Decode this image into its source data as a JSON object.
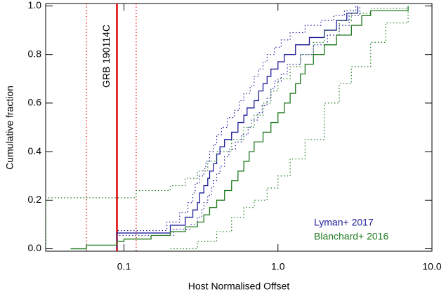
{
  "chart_data": {
    "type": "step",
    "x_label": "Host Normalised Offset",
    "y_label": "Cumulative fraction",
    "xscale": "log",
    "xlim": [
      0.031,
      10
    ],
    "ylim": [
      -0.01,
      1.01
    ],
    "xticks": [
      0.1,
      {
        "value": 1,
        "label": "1.0"
      },
      {
        "value": 10,
        "label": "10.0"
      }
    ],
    "yticks": [
      {
        "value": 0,
        "label": "0.0"
      },
      0.2,
      0.4,
      0.6,
      0.8,
      {
        "value": 1,
        "label": "1.0"
      }
    ],
    "vline": {
      "label": "GRB 190114C",
      "x": 0.09,
      "bounds": [
        0.057,
        0.12
      ],
      "color": "#e00000"
    },
    "series": [
      {
        "name": "Lyman+ 2017",
        "color": "#1c1c9a",
        "x": [
          0.09,
          0.2,
          0.25,
          0.28,
          0.3,
          0.31,
          0.33,
          0.35,
          0.36,
          0.38,
          0.4,
          0.42,
          0.45,
          0.5,
          0.55,
          0.6,
          0.63,
          0.7,
          0.75,
          0.8,
          0.85,
          0.9,
          1.0,
          1.1,
          1.3,
          1.6,
          2.0,
          2.4,
          2.8,
          3.3
        ],
        "values": [
          0.065,
          0.097,
          0.13,
          0.16,
          0.19,
          0.23,
          0.26,
          0.29,
          0.32,
          0.35,
          0.39,
          0.42,
          0.45,
          0.48,
          0.52,
          0.55,
          0.58,
          0.61,
          0.65,
          0.68,
          0.71,
          0.74,
          0.77,
          0.8,
          0.84,
          0.87,
          0.9,
          0.94,
          0.97,
          1.0
        ],
        "upper": {
          "x": [
            0.09,
            0.19,
            0.23,
            0.26,
            0.28,
            0.29,
            0.31,
            0.33,
            0.34,
            0.36,
            0.38,
            0.4,
            0.43,
            0.47,
            0.52,
            0.56,
            0.6,
            0.66,
            0.7,
            0.75,
            0.8,
            0.85,
            0.95,
            1.05,
            1.2,
            1.5,
            1.9,
            2.3,
            2.7,
            3.2
          ],
          "values": [
            0.075,
            0.11,
            0.15,
            0.19,
            0.23,
            0.27,
            0.3,
            0.33,
            0.36,
            0.4,
            0.43,
            0.47,
            0.5,
            0.54,
            0.57,
            0.61,
            0.64,
            0.67,
            0.71,
            0.74,
            0.77,
            0.8,
            0.83,
            0.86,
            0.89,
            0.92,
            0.94,
            0.96,
            0.98,
            1.0
          ]
        },
        "lower": {
          "x": [
            0.09,
            0.21,
            0.27,
            0.3,
            0.32,
            0.33,
            0.35,
            0.37,
            0.38,
            0.4,
            0.42,
            0.45,
            0.48,
            0.53,
            0.58,
            0.64,
            0.67,
            0.74,
            0.79,
            0.85,
            0.9,
            0.95,
            1.05,
            1.15,
            1.4,
            1.7,
            2.1,
            2.5,
            2.9,
            3.4
          ],
          "values": [
            0.055,
            0.08,
            0.1,
            0.13,
            0.16,
            0.19,
            0.22,
            0.25,
            0.28,
            0.31,
            0.34,
            0.38,
            0.41,
            0.44,
            0.47,
            0.5,
            0.53,
            0.56,
            0.59,
            0.62,
            0.66,
            0.69,
            0.72,
            0.76,
            0.8,
            0.84,
            0.88,
            0.92,
            0.96,
            1.0
          ]
        }
      },
      {
        "name": "Blanchard+ 2016",
        "color": "#1f7a1f",
        "x": [
          0.045,
          0.057,
          0.09,
          0.1,
          0.15,
          0.2,
          0.25,
          0.3,
          0.33,
          0.36,
          0.4,
          0.45,
          0.5,
          0.55,
          0.6,
          0.65,
          0.7,
          0.8,
          0.9,
          1.0,
          1.1,
          1.2,
          1.3,
          1.4,
          1.5,
          1.7,
          2.0,
          2.4,
          3.0,
          3.5,
          4.0,
          7.0
        ],
        "values": [
          0.0,
          0.015,
          0.03,
          0.04,
          0.055,
          0.07,
          0.09,
          0.11,
          0.14,
          0.17,
          0.2,
          0.24,
          0.28,
          0.32,
          0.36,
          0.4,
          0.44,
          0.48,
          0.52,
          0.56,
          0.6,
          0.64,
          0.68,
          0.72,
          0.76,
          0.8,
          0.84,
          0.88,
          0.92,
          0.96,
          0.98,
          1.0
        ],
        "upper": {
          "x": [
            0.031,
            0.12,
            0.2,
            0.25,
            0.3,
            0.35,
            0.4,
            0.5,
            0.6,
            0.7,
            0.8,
            0.9,
            1.0,
            1.2,
            1.4,
            1.7,
            2.0,
            2.5,
            3.0,
            4.0,
            7.0
          ],
          "values": [
            0.21,
            0.24,
            0.26,
            0.29,
            0.32,
            0.36,
            0.4,
            0.45,
            0.5,
            0.55,
            0.6,
            0.65,
            0.7,
            0.75,
            0.8,
            0.85,
            0.9,
            0.94,
            0.97,
            0.99,
            1.0
          ]
        },
        "lower": {
          "x": [
            0.2,
            0.3,
            0.4,
            0.5,
            0.6,
            0.7,
            0.85,
            1.0,
            1.2,
            1.5,
            2.0,
            2.5,
            3.0,
            4.0,
            5.0,
            7.0
          ],
          "values": [
            0.0,
            0.03,
            0.07,
            0.13,
            0.17,
            0.2,
            0.25,
            0.3,
            0.37,
            0.45,
            0.6,
            0.68,
            0.75,
            0.85,
            0.93,
            1.0
          ]
        }
      }
    ]
  }
}
